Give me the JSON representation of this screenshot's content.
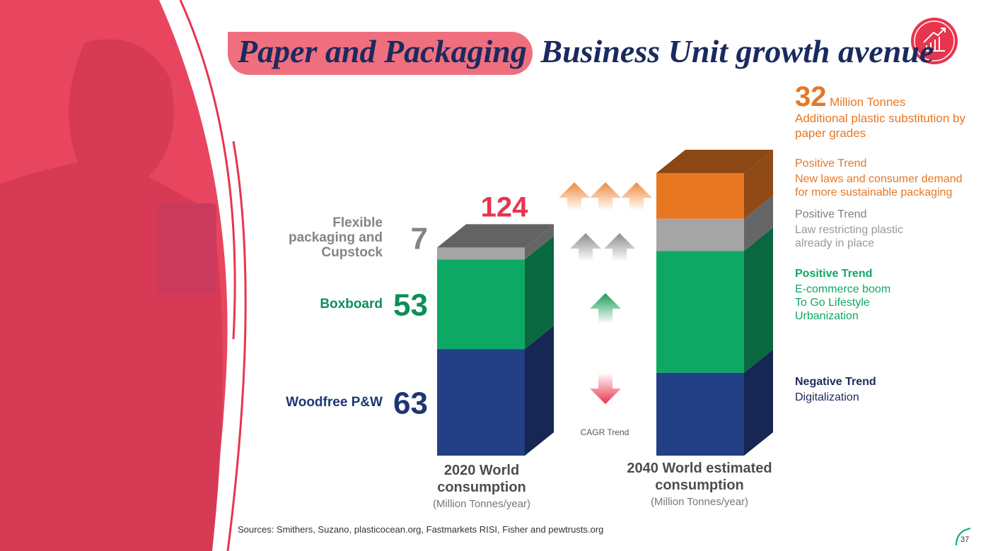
{
  "header": {
    "title_highlight": "Paper and Packaging",
    "title_rest": "Business Unit growth avenue"
  },
  "chart_data": {
    "type": "bar",
    "stacked": true,
    "categories": [
      "2020 World consumption",
      "2040 World estimated consumption"
    ],
    "category_unit": "(Million Tonnes/year)",
    "totals": [
      124,
      null
    ],
    "series": [
      {
        "name": "Woodfree P&W",
        "color": "#233f86",
        "values": [
          63,
          49
        ]
      },
      {
        "name": "Boxboard",
        "color": "#0ea865",
        "values": [
          53,
          72
        ]
      },
      {
        "name": "Flexible packaging and Cupstock",
        "color": "#a5a5a5",
        "values": [
          7,
          19
        ]
      },
      {
        "name": null,
        "color": "#e87722",
        "values": [
          null,
          27
        ]
      }
    ],
    "trend_label": "CAGR Trend"
  },
  "highlight": {
    "value": 32,
    "unit": "Million Tonnes",
    "text": "Additional plastic substitution by paper grades"
  },
  "trends": [
    {
      "title": "Positive Trend",
      "text": "New laws and consumer demand for more sustainable packaging"
    },
    {
      "title": "Positive Trend",
      "text": "Law restricting plastic already in place"
    },
    {
      "title": "Positive Trend",
      "text": [
        "E-commerce boom",
        "To Go Lifestyle",
        "Urbanization"
      ]
    },
    {
      "title": "Negative Trend",
      "text": "Digitalization"
    }
  ],
  "footer": {
    "sources": "Sources: Smithers, Suzano, plasticocean.org, Fastmarkets RISI, Fisher and pewtrusts.org",
    "page": 37
  }
}
